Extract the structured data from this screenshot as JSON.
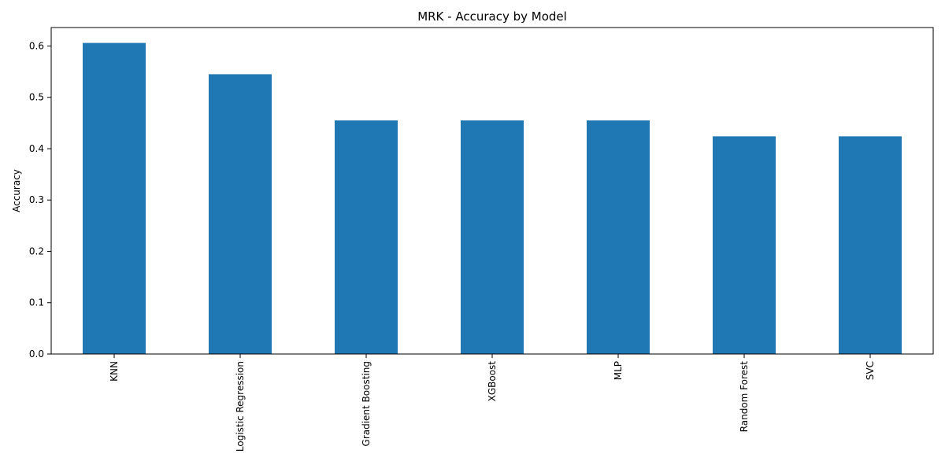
{
  "chart_data": {
    "type": "bar",
    "title": "MRK - Accuracy by Model",
    "xlabel": "",
    "ylabel": "Accuracy",
    "categories": [
      "KNN",
      "Logistic Regression",
      "Gradient Boosting",
      "XGBoost",
      "MLP",
      "Random Forest",
      "SVC"
    ],
    "values": [
      0.606,
      0.545,
      0.455,
      0.455,
      0.455,
      0.424,
      0.424
    ],
    "ylim": [
      0,
      0.636
    ],
    "yticks": [
      "0.0",
      "0.1",
      "0.2",
      "0.3",
      "0.4",
      "0.5",
      "0.6"
    ],
    "grid": false,
    "legend": "none",
    "bar_color": "#1f77b4"
  }
}
